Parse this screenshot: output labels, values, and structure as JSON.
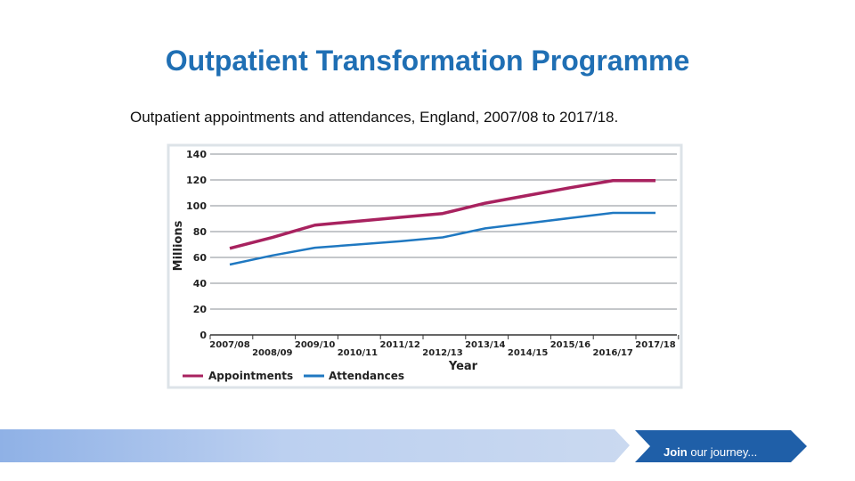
{
  "slide": {
    "title": "Outpatient Transformation Programme",
    "subtitle": "Outpatient appointments and attendances, England, 2007/08 to 2017/18."
  },
  "chart_data": {
    "type": "line",
    "title": "",
    "xlabel": "Year",
    "ylabel": "Millions",
    "ylim": [
      0,
      140
    ],
    "yticks": [
      0,
      20,
      40,
      60,
      80,
      100,
      120,
      140
    ],
    "grid": true,
    "legend": "bottom-left",
    "categories": [
      "2007/08",
      "2008/09",
      "2009/10",
      "2010/11",
      "2011/12",
      "2012/13",
      "2013/14",
      "2014/15",
      "2015/16",
      "2016/17",
      "2017/18"
    ],
    "series": [
      {
        "name": "Appointments",
        "color": "#a8225f",
        "values": [
          67,
          75.5,
          85,
          88,
          91,
          94,
          102,
          108,
          114,
          119.5,
          119.5
        ]
      },
      {
        "name": "Attendances",
        "color": "#1f78c1",
        "values": [
          54.5,
          61.5,
          67.5,
          70,
          72.5,
          75.5,
          82.5,
          86.5,
          90.5,
          94.5,
          94.5
        ]
      }
    ]
  },
  "footer": {
    "banner_bold": "Join",
    "banner_text": " our journey...",
    "banner_color": "#1f5fa8"
  }
}
